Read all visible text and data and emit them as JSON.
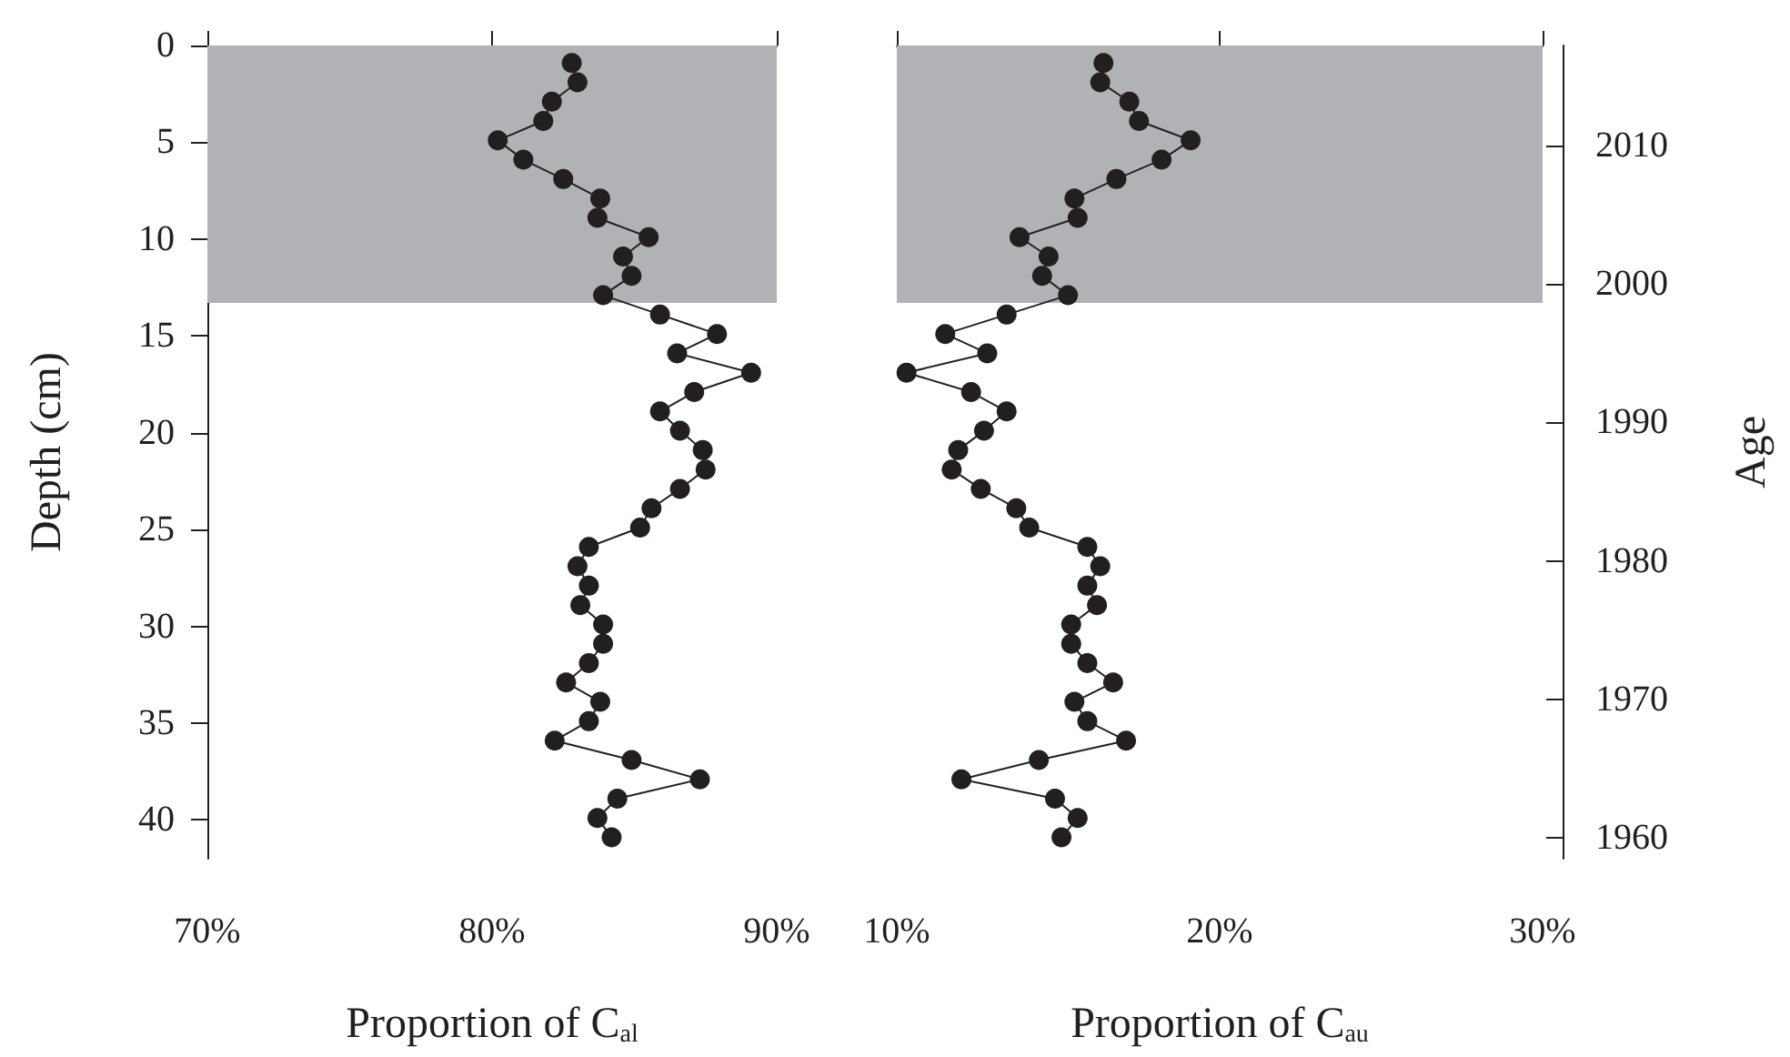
{
  "chart_data": [
    {
      "type": "line",
      "xlabel": "Proportion of C$_{al}$",
      "ylabel": "Depth (cm)",
      "marker": "circle",
      "line_style": "solid",
      "xlim": [
        70,
        90
      ],
      "xticks": [
        {
          "value": 70,
          "label": "70%"
        },
        {
          "value": 80,
          "label": "80%"
        },
        {
          "value": 90,
          "label": "90%"
        }
      ],
      "ylim": [
        42,
        0
      ],
      "yticks": [
        0,
        5,
        10,
        15,
        20,
        25,
        30,
        35,
        40
      ],
      "bands": [
        {
          "axis": "y",
          "from": 0,
          "to": 13.3,
          "color": "#b1b2b5"
        }
      ],
      "series": [
        {
          "color": "#231f20",
          "x": [
            82.8,
            83.0,
            82.1,
            81.8,
            80.2,
            81.1,
            82.5,
            83.8,
            83.7,
            85.5,
            84.6,
            84.9,
            83.9,
            85.9,
            87.9,
            86.5,
            89.1,
            87.1,
            85.9,
            86.6,
            87.4,
            87.5,
            86.6,
            85.6,
            85.2,
            83.4,
            83.0,
            83.4,
            83.1,
            83.9,
            83.9,
            83.4,
            82.6,
            83.8,
            83.4,
            82.2,
            84.9,
            87.3,
            84.4,
            83.7,
            84.2
          ],
          "values": [
            0.9,
            1.9,
            2.9,
            3.9,
            4.9,
            5.9,
            6.9,
            7.9,
            8.9,
            9.9,
            10.9,
            11.9,
            12.9,
            13.9,
            14.9,
            15.9,
            16.9,
            17.9,
            18.9,
            19.9,
            20.9,
            21.9,
            22.9,
            23.9,
            24.9,
            25.9,
            26.9,
            27.9,
            28.9,
            29.9,
            30.9,
            31.9,
            32.9,
            33.9,
            34.9,
            35.9,
            36.9,
            37.9,
            38.9,
            39.9,
            40.9
          ]
        }
      ]
    },
    {
      "type": "line",
      "xlabel": "Proportion of C$_{au}$",
      "y2label": "Age",
      "marker": "circle",
      "line_style": "solid",
      "xlim": [
        10,
        30
      ],
      "xticks": [
        {
          "value": 10,
          "label": "10%"
        },
        {
          "value": 20,
          "label": "20%"
        },
        {
          "value": 30,
          "label": "30%"
        }
      ],
      "ylim": [
        42,
        0
      ],
      "y2lim": [
        1958.5,
        2017.2
      ],
      "y2ticks": [
        1960,
        1970,
        1980,
        1990,
        2000,
        2010
      ],
      "bands": [
        {
          "axis": "y",
          "from": 0,
          "to": 13.3,
          "color": "#b1b2b5"
        }
      ],
      "series": [
        {
          "color": "#231f20",
          "x": [
            16.4,
            16.3,
            17.2,
            17.5,
            19.1,
            18.2,
            16.8,
            15.5,
            15.6,
            13.8,
            14.7,
            14.5,
            15.3,
            13.4,
            11.5,
            12.8,
            10.3,
            12.3,
            13.4,
            12.7,
            11.9,
            11.7,
            12.6,
            13.7,
            14.1,
            15.9,
            16.3,
            15.9,
            16.2,
            15.4,
            15.4,
            15.9,
            16.7,
            15.5,
            15.9,
            17.1,
            14.4,
            12.0,
            14.9,
            15.6,
            15.1
          ],
          "values": [
            0.9,
            1.9,
            2.9,
            3.9,
            4.9,
            5.9,
            6.9,
            7.9,
            8.9,
            9.9,
            10.9,
            11.9,
            12.9,
            13.9,
            14.9,
            15.9,
            16.9,
            17.9,
            18.9,
            19.9,
            20.9,
            21.9,
            22.9,
            23.9,
            24.9,
            25.9,
            26.9,
            27.9,
            28.9,
            29.9,
            30.9,
            31.9,
            32.9,
            33.9,
            34.9,
            35.9,
            36.9,
            37.9,
            38.9,
            39.9,
            40.9
          ]
        }
      ]
    }
  ]
}
